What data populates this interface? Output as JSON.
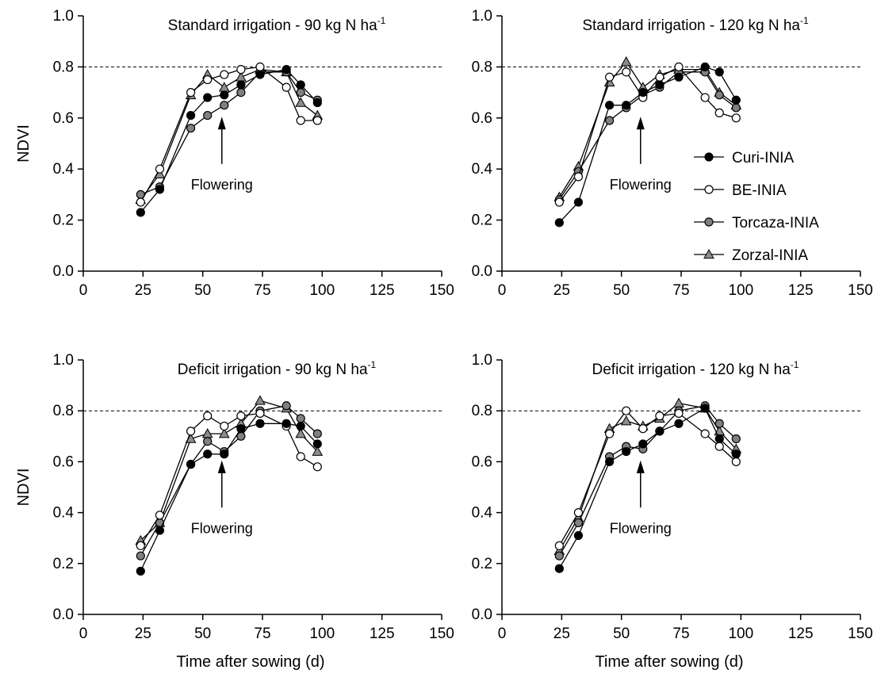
{
  "figure": {
    "ylabel": "NDVI",
    "xlabel": "Time after sowing (d)",
    "xticks": [
      "0",
      "25",
      "50",
      "75",
      "100",
      "125",
      "150"
    ],
    "yticks": [
      "0.0",
      "0.2",
      "0.4",
      "0.6",
      "0.8",
      "1.0"
    ],
    "annotation": "Flowering",
    "reference_line": 0.8,
    "flowering_day": 58
  },
  "legend": {
    "position": "inside top-right panel, right side",
    "items": [
      "Curi-INIA",
      "BE-INIA",
      "Torcaza-INIA",
      "Zorzal-INIA"
    ]
  },
  "series_styles": [
    {
      "name": "Curi-INIA",
      "marker": "circle",
      "fill": "#000000"
    },
    {
      "name": "BE-INIA",
      "marker": "circle",
      "fill": "#ffffff"
    },
    {
      "name": "Torcaza-INIA",
      "marker": "circle",
      "fill": "#808080"
    },
    {
      "name": "Zorzal-INIA",
      "marker": "triangle",
      "fill": "#8c8c8c"
    }
  ],
  "chart_data": [
    {
      "type": "line",
      "title_main": "Standard irrigation - 90 kg N ha",
      "title_sup": "-1",
      "xlabel": "",
      "ylabel": "NDVI",
      "xlim": [
        0,
        150
      ],
      "ylim": [
        0,
        1.0
      ],
      "x": [
        24,
        32,
        45,
        52,
        59,
        66,
        74,
        85,
        91,
        98
      ],
      "series": [
        {
          "name": "Curi-INIA",
          "values": [
            0.23,
            0.32,
            0.61,
            0.68,
            0.69,
            0.73,
            0.77,
            0.79,
            0.73,
            0.66
          ]
        },
        {
          "name": "BE-INIA",
          "values": [
            0.27,
            0.4,
            0.7,
            0.75,
            0.77,
            0.79,
            0.8,
            0.72,
            0.59,
            0.59
          ]
        },
        {
          "name": "Torcaza-INIA",
          "values": [
            0.3,
            0.33,
            0.56,
            0.61,
            0.65,
            0.7,
            0.78,
            0.78,
            0.7,
            0.67
          ]
        },
        {
          "name": "Zorzal-INIA",
          "values": [
            0.28,
            0.38,
            0.69,
            0.77,
            0.72,
            0.76,
            0.79,
            0.78,
            0.66,
            0.61
          ]
        }
      ]
    },
    {
      "type": "line",
      "title_main": "Standard irrigation - 120 kg N ha",
      "title_sup": "-1",
      "xlabel": "",
      "ylabel": "",
      "xlim": [
        0,
        150
      ],
      "ylim": [
        0,
        1.0
      ],
      "x": [
        24,
        32,
        45,
        52,
        59,
        66,
        74,
        85,
        91,
        98
      ],
      "series": [
        {
          "name": "Curi-INIA",
          "values": [
            0.19,
            0.27,
            0.65,
            0.65,
            0.7,
            0.73,
            0.76,
            0.8,
            0.78,
            0.67
          ]
        },
        {
          "name": "BE-INIA",
          "values": [
            0.27,
            0.37,
            0.76,
            0.78,
            0.68,
            0.76,
            0.8,
            0.68,
            0.62,
            0.6
          ]
        },
        {
          "name": "Torcaza-INIA",
          "values": [
            0.28,
            0.39,
            0.59,
            0.64,
            0.69,
            0.72,
            0.78,
            0.78,
            0.69,
            0.64
          ]
        },
        {
          "name": "Zorzal-INIA",
          "values": [
            0.29,
            0.41,
            0.74,
            0.82,
            0.72,
            0.77,
            0.79,
            0.79,
            0.7,
            0.65
          ]
        }
      ]
    },
    {
      "type": "line",
      "title_main": "Deficit irrigation - 90 kg N ha",
      "title_sup": "-1",
      "xlabel": "Time after sowing (d)",
      "ylabel": "NDVI",
      "xlim": [
        0,
        150
      ],
      "ylim": [
        0,
        1.0
      ],
      "x": [
        24,
        32,
        45,
        52,
        59,
        66,
        74,
        85,
        91,
        98
      ],
      "series": [
        {
          "name": "Curi-INIA",
          "values": [
            0.17,
            0.33,
            0.59,
            0.63,
            0.63,
            0.73,
            0.75,
            0.75,
            0.74,
            0.67
          ]
        },
        {
          "name": "BE-INIA",
          "values": [
            0.27,
            0.39,
            0.72,
            0.78,
            0.74,
            0.78,
            0.79,
            0.74,
            0.62,
            0.58
          ]
        },
        {
          "name": "Torcaza-INIA",
          "values": [
            0.23,
            0.36,
            0.59,
            0.68,
            0.64,
            0.7,
            0.8,
            0.82,
            0.77,
            0.71
          ]
        },
        {
          "name": "Zorzal-INIA",
          "values": [
            0.29,
            0.36,
            0.69,
            0.71,
            0.71,
            0.75,
            0.84,
            0.81,
            0.71,
            0.64
          ]
        }
      ]
    },
    {
      "type": "line",
      "title_main": "Deficit irrigation - 120 kg N ha",
      "title_sup": "-1",
      "xlabel": "Time after sowing (d)",
      "ylabel": "",
      "xlim": [
        0,
        150
      ],
      "ylim": [
        0,
        1.0
      ],
      "x": [
        24,
        32,
        45,
        52,
        59,
        66,
        74,
        85,
        91,
        98
      ],
      "series": [
        {
          "name": "Curi-INIA",
          "values": [
            0.18,
            0.31,
            0.6,
            0.64,
            0.67,
            0.72,
            0.75,
            0.81,
            0.69,
            0.63
          ]
        },
        {
          "name": "BE-INIA",
          "values": [
            0.27,
            0.4,
            0.71,
            0.8,
            0.73,
            0.78,
            0.79,
            0.71,
            0.66,
            0.6
          ]
        },
        {
          "name": "Torcaza-INIA",
          "values": [
            0.23,
            0.36,
            0.62,
            0.66,
            0.65,
            0.72,
            0.8,
            0.82,
            0.75,
            0.69
          ]
        },
        {
          "name": "Zorzal-INIA",
          "values": [
            0.25,
            0.38,
            0.73,
            0.76,
            0.74,
            0.77,
            0.83,
            0.81,
            0.72,
            0.65
          ]
        }
      ]
    }
  ]
}
